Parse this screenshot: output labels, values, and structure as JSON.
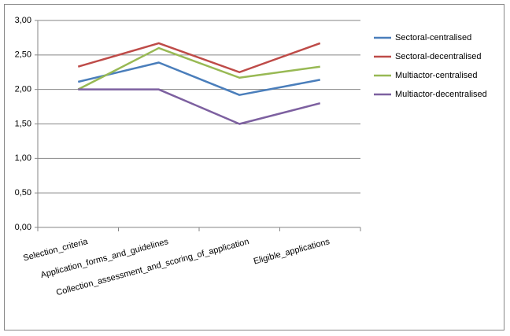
{
  "chart_data": {
    "type": "line",
    "categories": [
      "Selection_criteria",
      "Application_forms_and_guidelines",
      "Collection_assessment_and_scoring_of_application",
      "Eligible_applications"
    ],
    "series": [
      {
        "name": "Sectoral-centralised",
        "color": "#4a7ebb",
        "values": [
          2.11,
          2.39,
          1.92,
          2.14
        ]
      },
      {
        "name": "Sectoral-decentralised",
        "color": "#be4b48",
        "values": [
          2.33,
          2.67,
          2.25,
          2.67
        ]
      },
      {
        "name": "Multiactor-centralised",
        "color": "#98b954",
        "values": [
          2.0,
          2.6,
          2.17,
          2.33
        ]
      },
      {
        "name": "Multiactor-decentralised",
        "color": "#7d60a0",
        "values": [
          2.0,
          2.0,
          1.5,
          1.8
        ]
      }
    ],
    "ylim": [
      0,
      3
    ],
    "yticks": [
      {
        "value": 0,
        "label": "0,00"
      },
      {
        "value": 0.5,
        "label": "0,50"
      },
      {
        "value": 1,
        "label": "1,00"
      },
      {
        "value": 1.5,
        "label": "1,50"
      },
      {
        "value": 2,
        "label": "2,00"
      },
      {
        "value": 2.5,
        "label": "2,50"
      },
      {
        "value": 3,
        "label": "3,00"
      }
    ],
    "grid": true,
    "legend": "right"
  }
}
